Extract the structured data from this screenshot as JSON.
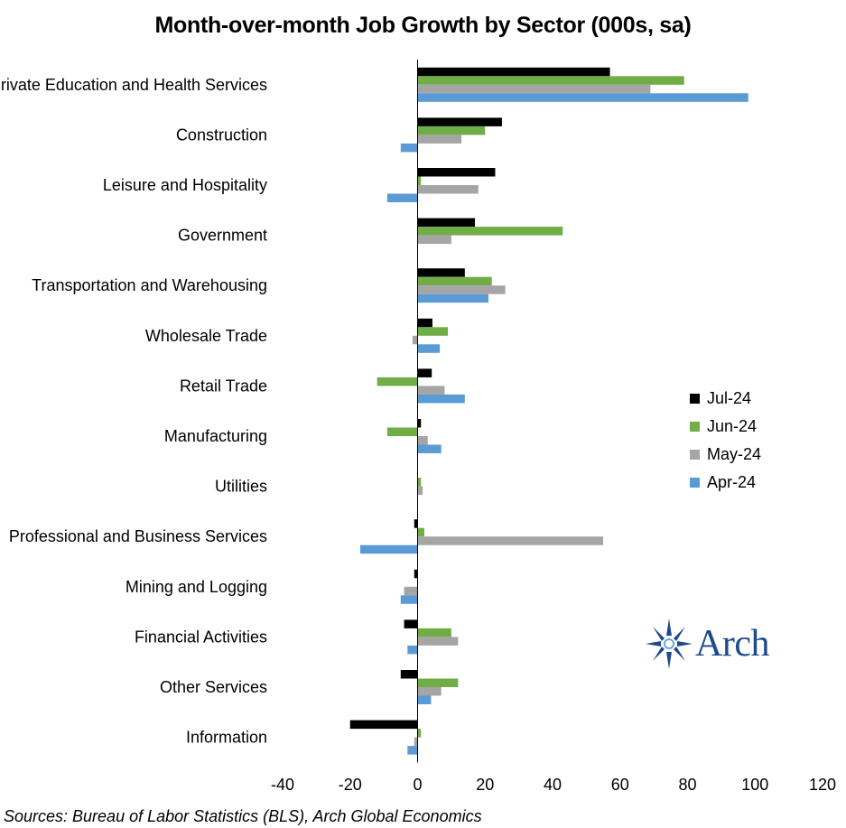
{
  "chart_data": {
    "type": "bar",
    "orientation": "horizontal",
    "title": "Month-over-month Job Growth by Sector (000s, sa)",
    "categories": [
      "Private Education and Health Services",
      "Construction",
      "Leisure and Hospitality",
      "Government",
      "Transportation and Warehousing",
      "Wholesale Trade",
      "Retail Trade",
      "Manufacturing",
      "Utilities",
      "Professional and Business Services",
      "Mining and Logging",
      "Financial Activities",
      "Other Services",
      "Information"
    ],
    "series": [
      {
        "name": "Jul-24",
        "color": "#000000",
        "values": [
          57,
          25,
          23,
          17,
          14,
          4.4,
          4.2,
          1,
          0,
          -1,
          -1,
          -4,
          -5,
          -20
        ]
      },
      {
        "name": "Jun-24",
        "color": "#70ad47",
        "values": [
          79,
          20,
          1,
          43,
          22,
          9,
          -12,
          -9,
          1,
          2,
          0,
          10,
          12,
          1
        ]
      },
      {
        "name": "May-24",
        "color": "#a5a5a5",
        "values": [
          69,
          13,
          18,
          10,
          26,
          -1.5,
          8,
          3,
          1.5,
          55,
          -4,
          12,
          7,
          -1
        ]
      },
      {
        "name": "Apr-24",
        "color": "#5b9bd5",
        "values": [
          98,
          -5,
          -9,
          0,
          21,
          6.6,
          14,
          7,
          0,
          -17,
          -5,
          -3,
          4,
          -3
        ]
      }
    ],
    "xlim": [
      -40,
      120
    ],
    "xticks": [
      "-40",
      "-20",
      "0",
      "20",
      "40",
      "60",
      "80",
      "100",
      "120"
    ],
    "legend_position": "right",
    "grid": false
  },
  "source": "Sources: Bureau of Labor Statistics (BLS), Arch Global Economics",
  "logo_text": "Arch"
}
